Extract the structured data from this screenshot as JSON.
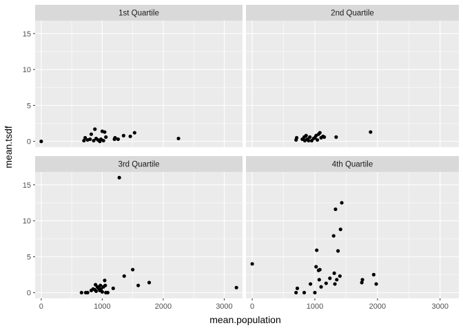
{
  "chart_data": {
    "type": "scatter",
    "xlabel": "mean.population",
    "ylabel": "mean.tsdf",
    "xlim": [
      -100,
      3300
    ],
    "ylim": [
      -0.8,
      16.8
    ],
    "x_ticks": [
      0,
      1000,
      2000,
      3000
    ],
    "y_ticks": [
      0,
      5,
      10,
      15
    ],
    "x_tick_labels": [
      "0",
      "1000",
      "2000",
      "3000"
    ],
    "y_tick_labels": [
      "0",
      "5",
      "10",
      "15"
    ],
    "grid": true,
    "colors": {
      "panel_bg": "#ebebeb",
      "strip_bg": "#d9d9d9",
      "grid": "#ffffff",
      "point": "#000000"
    },
    "facets": [
      {
        "label": "1st Quartile",
        "points": [
          [
            0,
            0.0
          ],
          [
            700,
            0.1
          ],
          [
            720,
            0.5
          ],
          [
            760,
            0.2
          ],
          [
            800,
            0.3
          ],
          [
            820,
            1.0
          ],
          [
            860,
            0.1
          ],
          [
            880,
            1.7
          ],
          [
            900,
            0.4
          ],
          [
            930,
            0.2
          ],
          [
            960,
            0.0
          ],
          [
            980,
            0.3
          ],
          [
            1000,
            1.4
          ],
          [
            1020,
            0.1
          ],
          [
            1040,
            1.3
          ],
          [
            1060,
            0.6
          ],
          [
            1200,
            0.3
          ],
          [
            1210,
            0.5
          ],
          [
            1260,
            0.3
          ],
          [
            1350,
            0.8
          ],
          [
            1460,
            0.7
          ],
          [
            1530,
            1.2
          ],
          [
            2250,
            0.4
          ]
        ]
      },
      {
        "label": "2nd Quartile",
        "points": [
          [
            700,
            0.2
          ],
          [
            710,
            0.5
          ],
          [
            800,
            0.3
          ],
          [
            830,
            0.6
          ],
          [
            840,
            0.1
          ],
          [
            860,
            0.8
          ],
          [
            880,
            0.3
          ],
          [
            900,
            0.1
          ],
          [
            920,
            0.6
          ],
          [
            950,
            0.1
          ],
          [
            980,
            0.4
          ],
          [
            1000,
            0.5
          ],
          [
            1020,
            0.8
          ],
          [
            1040,
            0.2
          ],
          [
            1060,
            1.0
          ],
          [
            1080,
            1.2
          ],
          [
            1100,
            0.5
          ],
          [
            1130,
            0.7
          ],
          [
            1150,
            0.6
          ],
          [
            1340,
            0.6
          ],
          [
            1890,
            1.3
          ]
        ]
      },
      {
        "label": "3rd Quartile",
        "points": [
          [
            660,
            0.0
          ],
          [
            730,
            0.0
          ],
          [
            760,
            0.0
          ],
          [
            820,
            0.3
          ],
          [
            850,
            0.5
          ],
          [
            880,
            0.4
          ],
          [
            890,
            1.1
          ],
          [
            900,
            0.2
          ],
          [
            920,
            0.8
          ],
          [
            940,
            0.6
          ],
          [
            960,
            0.3
          ],
          [
            970,
            1.0
          ],
          [
            980,
            0.5
          ],
          [
            1000,
            0.1
          ],
          [
            1020,
            0.8
          ],
          [
            1040,
            1.7
          ],
          [
            1050,
            1.0
          ],
          [
            1060,
            0.0
          ],
          [
            1090,
            0.0
          ],
          [
            1180,
            0.6
          ],
          [
            1280,
            16.0
          ],
          [
            1360,
            2.3
          ],
          [
            1500,
            3.2
          ],
          [
            1590,
            1.0
          ],
          [
            1770,
            1.4
          ],
          [
            3200,
            0.7
          ]
        ]
      },
      {
        "label": "4th Quartile",
        "points": [
          [
            0,
            4.0
          ],
          [
            700,
            0.0
          ],
          [
            720,
            0.6
          ],
          [
            830,
            0.0
          ],
          [
            930,
            1.2
          ],
          [
            1000,
            0.0
          ],
          [
            1020,
            3.6
          ],
          [
            1030,
            5.9
          ],
          [
            1060,
            3.1
          ],
          [
            1070,
            1.8
          ],
          [
            1080,
            3.2
          ],
          [
            1100,
            0.8
          ],
          [
            1180,
            1.3
          ],
          [
            1240,
            2.0
          ],
          [
            1300,
            7.9
          ],
          [
            1310,
            2.7
          ],
          [
            1320,
            1.2
          ],
          [
            1330,
            11.6
          ],
          [
            1350,
            1.8
          ],
          [
            1370,
            5.8
          ],
          [
            1400,
            2.3
          ],
          [
            1410,
            8.8
          ],
          [
            1430,
            12.5
          ],
          [
            1750,
            1.4
          ],
          [
            1760,
            1.8
          ],
          [
            1940,
            2.5
          ],
          [
            1980,
            1.2
          ]
        ]
      }
    ]
  }
}
